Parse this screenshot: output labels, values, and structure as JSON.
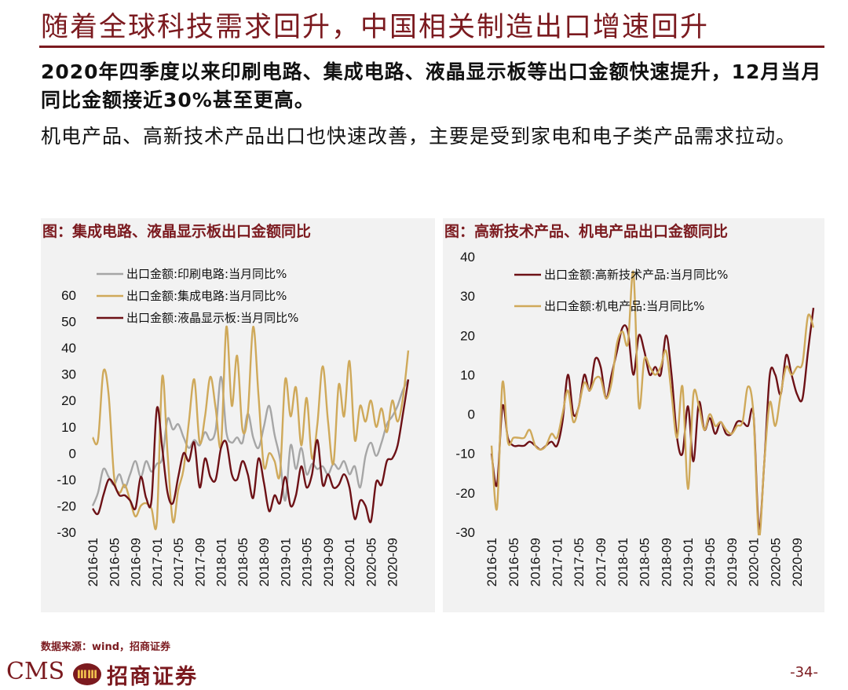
{
  "page": {
    "title": "随着全球科技需求回升，中国相关制造出口增速回升",
    "para1": "2020年四季度以来印刷电路、集成电路、液晶显示板等出口金额快速提升，12月当月同比金额接近30%甚至更高。",
    "para2": "机电产品、高新技术产品出口也快速改善，主要是受到家电和电子类产品需求拉动。",
    "source": "数据来源：wind，招商证券",
    "brand_cms": "CMS",
    "brand_logo_text": "ⅢⅢ",
    "brand_name": "招商证券",
    "page_number": "-34-"
  },
  "colors": {
    "accent": "#7b1a1f",
    "panel_bg": "#f2f2f2",
    "gray_series": "#a6a6a6",
    "gold_series": "#cfa95a",
    "maroon_series": "#6d1116"
  },
  "chart_data": [
    {
      "type": "line",
      "title": "图：集成电路、液晶显示板出口金额同比",
      "x_ticks": [
        "2016-01",
        "2016-05",
        "2016-09",
        "2017-01",
        "2017-05",
        "2017-09",
        "2018-01",
        "2018-05",
        "2018-09",
        "2019-01",
        "2019-05",
        "2019-09",
        "2020-01",
        "2020-05",
        "2020-09"
      ],
      "y_ticks": [
        "-30",
        "-20",
        "-10",
        "0",
        "10",
        "20",
        "30",
        "40",
        "50",
        "60"
      ],
      "ylim": [
        -30,
        60
      ],
      "n_months": 60,
      "legend_position": "top-left",
      "series": [
        {
          "name": "出口金额:印刷电路:当月同比%",
          "color": "#a6a6a6",
          "values": [
            -20,
            -15,
            -6,
            -9,
            -12,
            -8,
            -13,
            -8,
            -3,
            -9,
            -3,
            -7,
            -4,
            -2,
            13,
            9,
            11,
            6,
            2,
            5,
            3,
            8,
            5,
            9,
            29,
            8,
            4,
            6,
            4,
            15,
            6,
            2,
            10,
            18,
            7,
            -2,
            -18,
            3,
            -6,
            2,
            -8,
            -4,
            -6,
            -5,
            -8,
            -4,
            -6,
            -3,
            -8,
            -5,
            -13,
            -1,
            4,
            -1,
            4,
            11,
            14,
            18,
            24,
            28
          ]
        },
        {
          "name": "出口金额:集成电路:当月同比%",
          "color": "#cfa95a",
          "values": [
            6,
            5,
            31,
            22,
            -9,
            -15,
            -12,
            -18,
            -24,
            -20,
            -19,
            -21,
            -26,
            29,
            0,
            -26,
            -14,
            -6,
            12,
            28,
            4,
            14,
            29,
            17,
            3,
            48,
            18,
            37,
            9,
            15,
            48,
            22,
            -5,
            0,
            -3,
            -8,
            28,
            14,
            25,
            3,
            21,
            -2,
            11,
            33,
            12,
            -4,
            26,
            14,
            35,
            5,
            18,
            12,
            20,
            10,
            17,
            8,
            20,
            12,
            21,
            39
          ]
        },
        {
          "name": "出口金额:液晶显示板:当月同比%",
          "color": "#6d1116",
          "values": [
            -21,
            -23,
            -16,
            -10,
            -12,
            -16,
            -16,
            -18,
            -21,
            -9,
            -17,
            -18,
            17,
            2,
            -15,
            -19,
            -9,
            0,
            -3,
            4,
            -13,
            -2,
            -9,
            -10,
            2,
            4,
            -8,
            -10,
            -3,
            -8,
            -17,
            -2,
            -11,
            -22,
            -16,
            -19,
            -9,
            -20,
            -16,
            -5,
            -13,
            -8,
            5,
            -12,
            -8,
            -13,
            -12,
            -8,
            -13,
            -25,
            -18,
            -20,
            -26,
            -11,
            -12,
            -3,
            -2,
            3,
            15,
            28
          ]
        }
      ]
    },
    {
      "type": "line",
      "title": "图：高新技术产品、机电产品出口金额同比",
      "x_ticks": [
        "2016-01",
        "2016-05",
        "2016-09",
        "2017-01",
        "2017-05",
        "2017-09",
        "2018-01",
        "2018-05",
        "2018-09",
        "2019-01",
        "2019-05",
        "2019-09",
        "2020-01",
        "2020-05",
        "2020-09"
      ],
      "y_ticks": [
        "-30",
        "-20",
        "-10",
        "0",
        "10",
        "20",
        "30",
        "40"
      ],
      "ylim": [
        -30,
        40
      ],
      "n_months": 60,
      "legend_position": "top-center",
      "series": [
        {
          "name": "出口金额:高新技术产品:当月同比%",
          "color": "#6d1116",
          "values": [
            -10,
            -18,
            2,
            -6,
            -8,
            -8,
            -8,
            -7,
            -8,
            -9,
            -8,
            -7,
            -8,
            -2,
            10,
            0,
            2,
            10,
            6,
            14,
            12,
            4,
            10,
            16,
            22,
            21,
            10,
            20,
            16,
            10,
            12,
            10,
            20,
            10,
            -6,
            -10,
            2,
            -12,
            3,
            -4,
            -1,
            -5,
            -2,
            -5,
            -5,
            -2,
            -2,
            -3,
            0,
            -29,
            -12,
            10,
            10,
            5,
            15,
            10,
            5,
            4,
            16,
            27
          ]
        },
        {
          "name": "出口金额:机电产品:当月同比%",
          "color": "#cfa95a",
          "values": [
            -8,
            -24,
            8,
            -7,
            -6,
            -6,
            -6,
            -4,
            -8,
            -9,
            -8,
            -5,
            -6,
            0,
            6,
            -2,
            2,
            8,
            6,
            9,
            9,
            4,
            8,
            18,
            21,
            18,
            36,
            2,
            14,
            12,
            10,
            12,
            16,
            5,
            -6,
            7,
            -19,
            5,
            2,
            -4,
            0,
            -3,
            -2,
            -4,
            -5,
            -3,
            -2,
            7,
            0,
            -31,
            -12,
            3,
            -3,
            5,
            12,
            10,
            12,
            13,
            25,
            22
          ]
        }
      ]
    }
  ]
}
